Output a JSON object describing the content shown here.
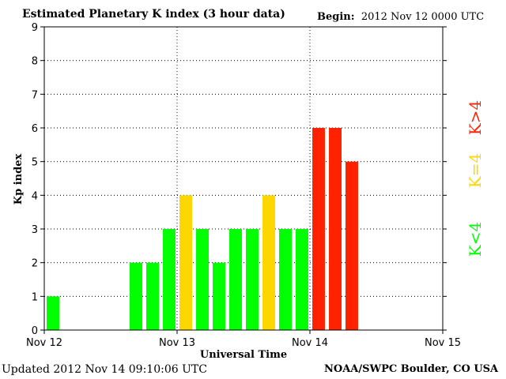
{
  "header": {
    "title": "Estimated Planetary K index (3 hour data)",
    "begin_label": "Begin:",
    "begin_value": "2012 Nov 12 0000 UTC"
  },
  "footer": {
    "updated": "Updated 2012 Nov 14 09:10:06 UTC",
    "credit": "NOAA/SWPC Boulder, CO USA"
  },
  "colors": {
    "low": "#00ff00",
    "moderate": "#ffd700",
    "high": "#ff2200"
  },
  "legend": [
    {
      "label": "K<4",
      "color": "#00ff00"
    },
    {
      "label": "K=4",
      "color": "#ffd700"
    },
    {
      "label": "K>4",
      "color": "#ff2200"
    }
  ],
  "chart_data": {
    "type": "bar",
    "title": "Estimated Planetary K index (3 hour data)",
    "xlabel": "Universal Time",
    "ylabel": "Kp index",
    "ylim": [
      0,
      9
    ],
    "yticks": [
      0,
      1,
      2,
      3,
      4,
      5,
      6,
      7,
      8,
      9
    ],
    "xlim_days": [
      0,
      3
    ],
    "xticks": [
      {
        "day": 0,
        "label": "Nov 12"
      },
      {
        "day": 1,
        "label": "Nov 13"
      },
      {
        "day": 2,
        "label": "Nov 14"
      },
      {
        "day": 3,
        "label": "Nov 15"
      }
    ],
    "interval_hours": 3,
    "grid": true,
    "values": [
      1,
      null,
      null,
      null,
      null,
      2,
      2,
      3,
      4,
      3,
      2,
      3,
      3,
      4,
      3,
      3,
      6,
      6,
      5
    ]
  }
}
